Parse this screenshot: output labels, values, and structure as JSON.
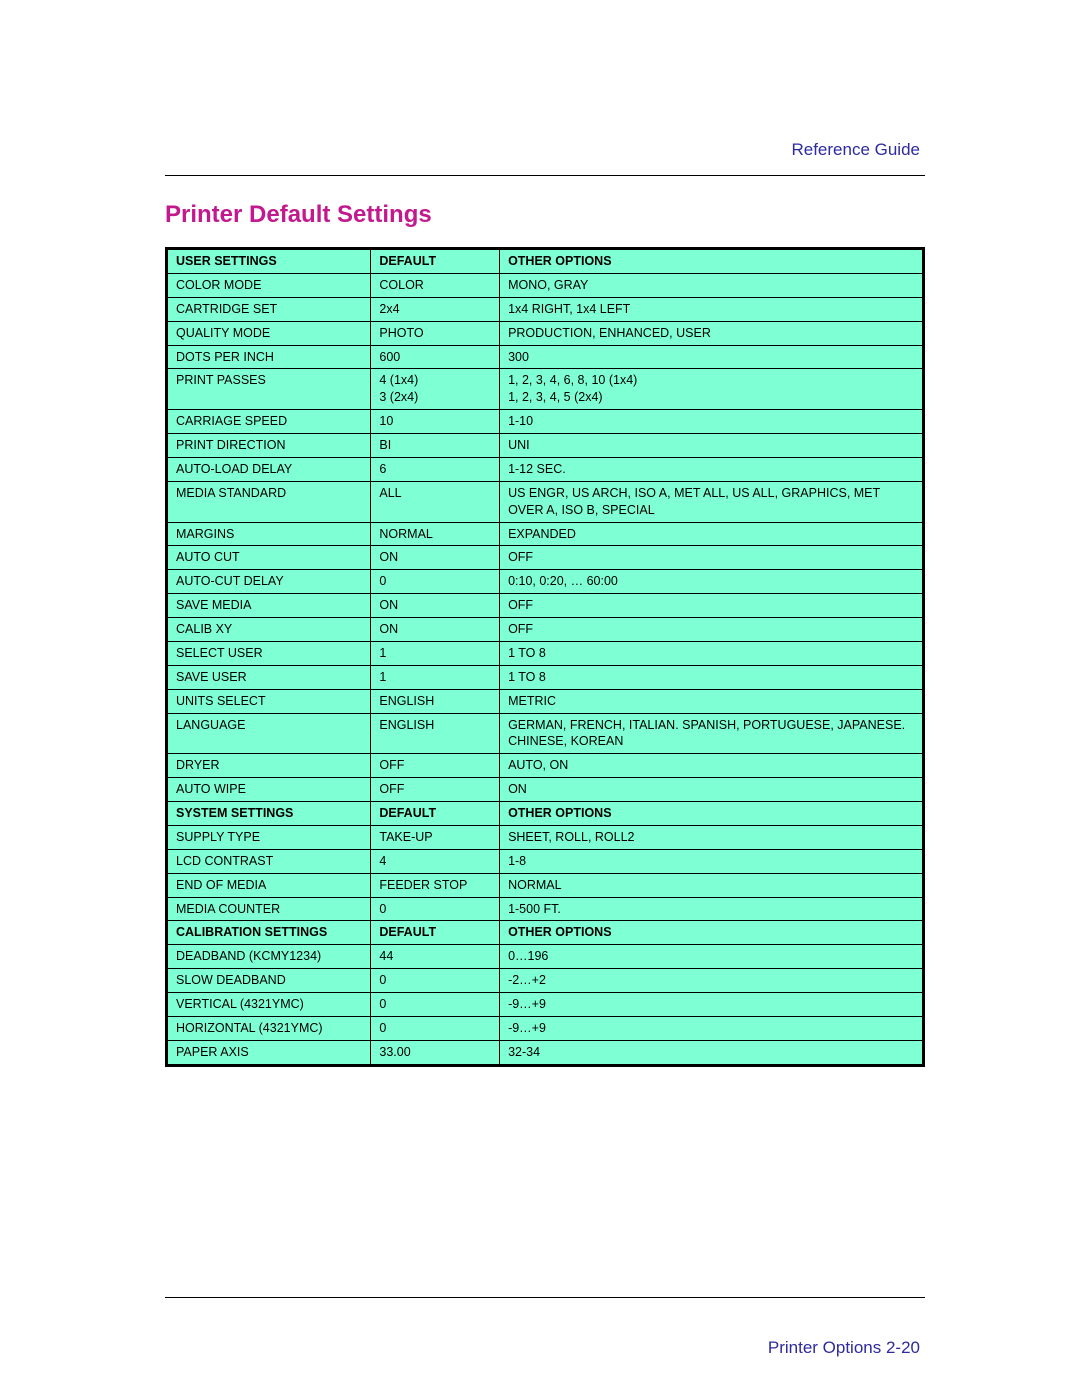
{
  "doc": {
    "header_right": "Reference Guide",
    "section_title": "Printer  Default  Settings",
    "footer_right": "Printer Options  2-20",
    "colors": {
      "title": "#c21a8e",
      "header_text": "#2e2aa0",
      "cell_bg": "#7fffd4",
      "border": "#000000"
    },
    "fonts": {
      "body_family": "Arial, Helvetica, sans-serif",
      "title_size_pt": 18,
      "cell_size_pt": 9,
      "header_right_size_pt": 13
    },
    "table": {
      "type": "table",
      "column_widths_pct": [
        27,
        17,
        56
      ],
      "sections": [
        {
          "header": [
            "USER SETTINGS",
            "DEFAULT",
            "OTHER OPTIONS"
          ],
          "rows": [
            [
              "COLOR MODE",
              "COLOR",
              "MONO, GRAY"
            ],
            [
              "CARTRIDGE SET",
              "2x4",
              "1x4 RIGHT, 1x4 LEFT"
            ],
            [
              "QUALITY MODE",
              "PHOTO",
              "PRODUCTION, ENHANCED, USER"
            ],
            [
              "DOTS  PER INCH",
              "600",
              "300"
            ],
            [
              "PRINT PASSES",
              "4 (1x4)\n3 (2x4)",
              "1, 2, 3, 4, 6, 8, 10 (1x4)\n1, 2, 3, 4, 5 (2x4)"
            ],
            [
              "CARRIAGE SPEED",
              "10",
              "1-10"
            ],
            [
              "PRINT DIRECTION",
              "BI",
              "UNI"
            ],
            [
              "AUTO-LOAD DELAY",
              "6",
              "1-12 SEC."
            ],
            [
              "MEDIA STANDARD",
              "ALL",
              "US ENGR, US ARCH, ISO A, MET ALL, US ALL, GRAPHICS, MET OVER A, ISO B, SPECIAL"
            ],
            [
              "MARGINS",
              "NORMAL",
              "EXPANDED"
            ],
            [
              "AUTO CUT",
              "ON",
              "OFF"
            ],
            [
              "AUTO-CUT DELAY",
              "0",
              "0:10, 0:20, … 60:00"
            ],
            [
              "SAVE MEDIA",
              "ON",
              "OFF"
            ],
            [
              "CALIB XY",
              "ON",
              "OFF"
            ],
            [
              "SELECT USER",
              "1",
              "1 TO 8"
            ],
            [
              "SAVE USER",
              "1",
              "1 TO 8"
            ],
            [
              "UNITS SELECT",
              "ENGLISH",
              "METRIC"
            ],
            [
              "LANGUAGE",
              "ENGLISH",
              "GERMAN, FRENCH, ITALIAN. SPANISH, PORTUGUESE, JAPANESE. CHINESE, KOREAN"
            ],
            [
              "DRYER",
              "OFF",
              "AUTO, ON"
            ],
            [
              "AUTO WIPE",
              "OFF",
              "ON"
            ]
          ]
        },
        {
          "header": [
            "SYSTEM SETTINGS",
            "DEFAULT",
            "OTHER OPTIONS"
          ],
          "rows": [
            [
              "SUPPLY TYPE",
              "TAKE-UP",
              "SHEET, ROLL, ROLL2"
            ],
            [
              "LCD CONTRAST",
              "4",
              "1-8"
            ],
            [
              "END OF MEDIA",
              "FEEDER STOP",
              "NORMAL"
            ],
            [
              "MEDIA COUNTER",
              "0",
              "1-500 FT."
            ]
          ]
        },
        {
          "header": [
            "CALIBRATION SETTINGS",
            "DEFAULT",
            "OTHER OPTIONS"
          ],
          "rows": [
            [
              "DEADBAND (KCMY1234)",
              "44",
              "0…196"
            ],
            [
              "SLOW DEADBAND",
              "0",
              "-2…+2"
            ],
            [
              "VERTICAL (4321YMC)",
              "0",
              "-9…+9"
            ],
            [
              "HORIZONTAL (4321YMC)",
              "0",
              "-9…+9"
            ],
            [
              "PAPER AXIS",
              "33.00",
              "32-34"
            ]
          ]
        }
      ]
    }
  }
}
